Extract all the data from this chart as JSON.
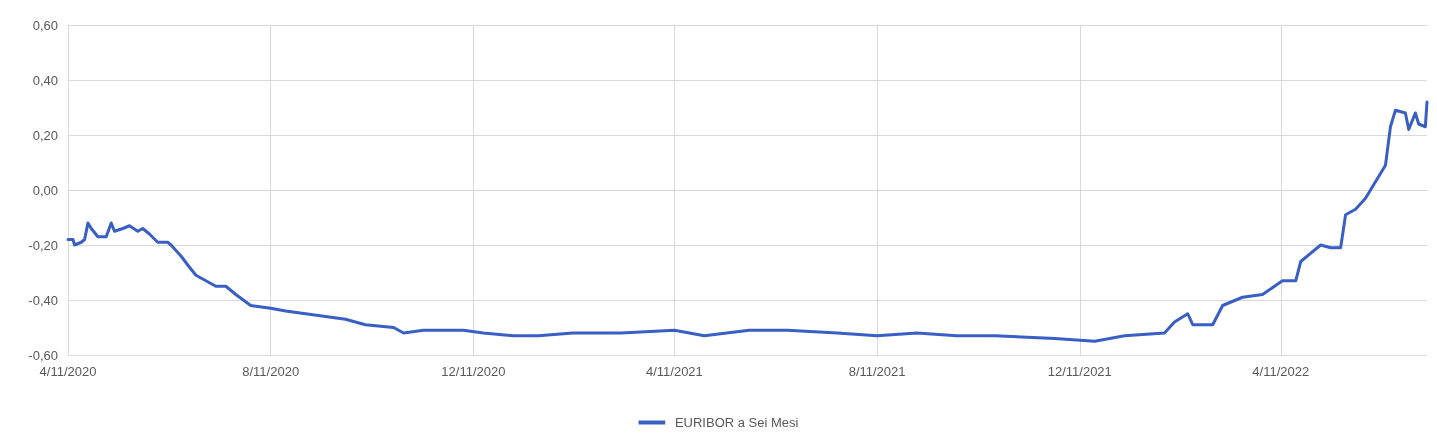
{
  "chart_data": {
    "type": "line",
    "x": [
      "2020-04-11",
      "2020-04-14",
      "2020-04-15",
      "2020-04-19",
      "2020-04-21",
      "2020-04-23",
      "2020-04-25",
      "2020-04-29",
      "2020-05-04",
      "2020-05-07",
      "2020-05-09",
      "2020-05-14",
      "2020-05-18",
      "2020-05-23",
      "2020-05-26",
      "2020-05-30",
      "2020-06-04",
      "2020-06-10",
      "2020-06-12",
      "2020-06-18",
      "2020-06-23",
      "2020-06-27",
      "2020-07-03",
      "2020-07-09",
      "2020-07-15",
      "2020-07-21",
      "2020-07-30",
      "2020-08-11",
      "2020-08-20",
      "2020-09-01",
      "2020-09-13",
      "2020-09-25",
      "2020-10-07",
      "2020-10-24",
      "2020-10-30",
      "2020-11-11",
      "2020-12-05",
      "2020-12-17",
      "2021-01-04",
      "2021-01-19",
      "2021-02-09",
      "2021-03-10",
      "2021-04-11",
      "2021-04-29",
      "2021-05-26",
      "2021-06-18",
      "2021-07-18",
      "2021-08-11",
      "2021-09-04",
      "2021-09-28",
      "2021-10-21",
      "2021-11-26",
      "2021-12-20",
      "2022-01-07",
      "2022-01-31",
      "2022-02-06",
      "2022-02-14",
      "2022-02-17",
      "2022-03-01",
      "2022-03-07",
      "2022-03-19",
      "2022-03-31",
      "2022-04-12",
      "2022-04-20",
      "2022-04-23",
      "2022-05-05",
      "2022-05-11",
      "2022-05-17",
      "2022-05-20",
      "2022-05-26",
      "2022-06-01",
      "2022-06-07",
      "2022-06-13",
      "2022-06-16",
      "2022-06-19",
      "2022-06-25",
      "2022-06-27",
      "2022-07-01",
      "2022-07-03",
      "2022-07-07",
      "2022-07-08"
    ],
    "series": [
      {
        "name": "EURIBOR a Sei Mesi",
        "color": "#3a5fc4",
        "values": [
          -0.18,
          -0.18,
          -0.2,
          -0.19,
          -0.18,
          -0.12,
          -0.14,
          -0.17,
          -0.17,
          -0.12,
          -0.15,
          -0.14,
          -0.13,
          -0.15,
          -0.14,
          -0.16,
          -0.19,
          -0.19,
          -0.2,
          -0.24,
          -0.28,
          -0.31,
          -0.33,
          -0.35,
          -0.35,
          -0.38,
          -0.42,
          -0.43,
          -0.44,
          -0.45,
          -0.46,
          -0.47,
          -0.49,
          -0.5,
          -0.52,
          -0.51,
          -0.51,
          -0.52,
          -0.53,
          -0.53,
          -0.52,
          -0.52,
          -0.51,
          -0.53,
          -0.51,
          -0.51,
          -0.52,
          -0.53,
          -0.52,
          -0.53,
          -0.53,
          -0.54,
          -0.55,
          -0.53,
          -0.52,
          -0.48,
          -0.45,
          -0.49,
          -0.49,
          -0.42,
          -0.39,
          -0.38,
          -0.33,
          -0.33,
          -0.26,
          -0.2,
          -0.21,
          -0.21,
          -0.09,
          -0.07,
          -0.03,
          0.03,
          0.09,
          0.23,
          0.29,
          0.28,
          0.22,
          0.28,
          0.24,
          0.23,
          0.32
        ]
      }
    ],
    "xlim": [
      "2020-04-11",
      "2022-07-08"
    ],
    "xticks": [
      {
        "value": "2020-04-11",
        "label": "4/11/2020"
      },
      {
        "value": "2020-08-11",
        "label": "8/11/2020"
      },
      {
        "value": "2020-12-11",
        "label": "12/11/2020"
      },
      {
        "value": "2021-04-11",
        "label": "4/11/2021"
      },
      {
        "value": "2021-08-11",
        "label": "8/11/2021"
      },
      {
        "value": "2021-12-11",
        "label": "12/11/2021"
      },
      {
        "value": "2022-04-11",
        "label": "4/11/2022"
      }
    ],
    "ylim": [
      -0.6,
      0.6
    ],
    "yticks": [
      {
        "value": -0.6,
        "label": "-0,60"
      },
      {
        "value": -0.4,
        "label": "-0,40"
      },
      {
        "value": -0.2,
        "label": "-0,20"
      },
      {
        "value": 0,
        "label": "0,00"
      },
      {
        "value": 0.2,
        "label": "0,20"
      },
      {
        "value": 0.4,
        "label": "0,40"
      },
      {
        "value": 0.6,
        "label": "0,60"
      }
    ],
    "grid": true,
    "legend": "bottom",
    "marker": "none",
    "line_style": "solid"
  }
}
